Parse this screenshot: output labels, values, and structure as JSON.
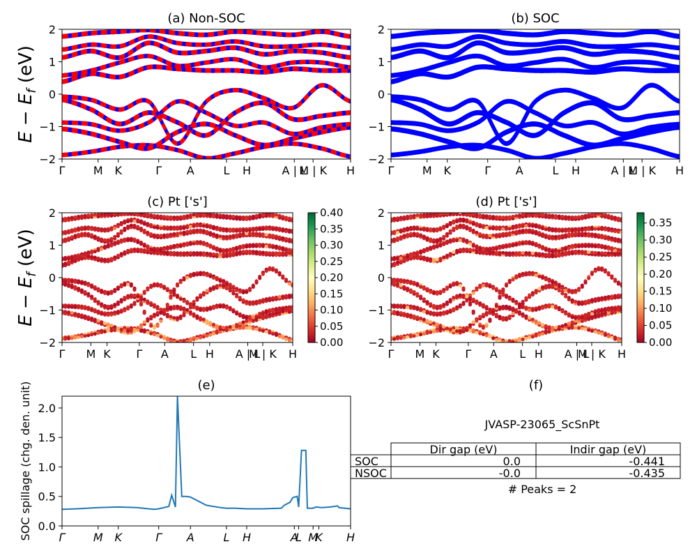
{
  "kpath_labels": [
    "Γ",
    "M",
    "K",
    "Γ",
    "A",
    "L",
    "H",
    "A | L",
    "M | K",
    "H"
  ],
  "kpath_positions": [
    0,
    0.125,
    0.195,
    0.335,
    0.445,
    0.57,
    0.64,
    0.805,
    0.87,
    1.0
  ],
  "kpath_labels_compact": [
    "Γ",
    "M",
    "K",
    "Γ",
    "A",
    "L",
    "H",
    "A | L",
    "M | K",
    "H"
  ],
  "kpath_labels_spillage": [
    "Γ",
    "M",
    "K",
    "Γ",
    "A",
    "L",
    "H",
    "A",
    "L",
    "M",
    "K",
    "H"
  ],
  "kpath_positions_spillage": [
    0,
    0.125,
    0.195,
    0.335,
    0.445,
    0.57,
    0.64,
    0.805,
    0.82,
    0.87,
    0.89,
    1.0
  ],
  "ylabel_energy": "E − E_f (eV)",
  "colors": {
    "nonsoc_up": "#ff0000",
    "nonsoc_down": "#0000ff",
    "soc": "#0000ff",
    "spillage": "#1f77b4"
  },
  "chart_data": [
    {
      "id": "a",
      "type": "line",
      "title": "(a) Non-SOC",
      "ylim": [
        -2,
        2
      ],
      "yticks": [
        "2",
        "1",
        "0",
        "−1",
        "−2"
      ],
      "legend": "none",
      "series": [
        {
          "y": [
            -1.85,
            -1.75,
            -1.6,
            -1.55,
            -1.7,
            -1.95,
            -1.8,
            -1.6,
            -1.5,
            -1.65,
            -1.9
          ]
        },
        {
          "y": [
            -1.1,
            -1.25,
            -1.5,
            -1.7,
            -1.2,
            -0.95,
            -1.3,
            -1.6,
            -1.4,
            -1.2,
            -1.05
          ]
        },
        {
          "y": [
            -0.85,
            -0.9,
            -1.1,
            -0.85,
            -0.2,
            -0.55,
            -0.95,
            -0.85,
            -1.2,
            -1.0,
            -0.9
          ]
        },
        {
          "y": [
            -0.2,
            -0.5,
            -0.95,
            -0.6,
            -0.9,
            -1.3,
            -0.6,
            -0.3,
            -0.8,
            -0.7,
            -0.6
          ]
        },
        {
          "y": [
            -0.05,
            -0.15,
            -0.45,
            -0.2,
            -1.5,
            -0.2,
            0.15,
            -0.1,
            -0.4,
            0.3,
            -0.2
          ]
        },
        {
          "y": [
            0.35,
            0.6,
            0.5,
            0.8,
            0.75,
            0.7,
            0.7,
            0.65,
            0.75,
            0.7,
            0.7
          ]
        },
        {
          "y": [
            0.6,
            0.75,
            1.0,
            1.2,
            0.9,
            1.0,
            1.1,
            0.85,
            1.0,
            1.0,
            0.85
          ]
        },
        {
          "y": [
            1.1,
            1.3,
            1.1,
            1.55,
            1.25,
            1.3,
            1.4,
            1.2,
            1.3,
            1.25,
            1.1
          ]
        },
        {
          "y": [
            1.4,
            1.55,
            1.5,
            1.8,
            1.6,
            1.55,
            1.65,
            1.5,
            1.5,
            1.55,
            1.45
          ]
        },
        {
          "y": [
            1.75,
            1.85,
            1.9,
            1.95,
            1.85,
            1.8,
            1.9,
            1.85,
            1.8,
            1.9,
            1.75
          ]
        }
      ]
    },
    {
      "id": "b",
      "type": "line",
      "title": "(b) SOC",
      "ylim": [
        -2,
        2
      ],
      "yticks": [
        "2",
        "1",
        "0",
        "−1",
        "−2"
      ],
      "legend": "none",
      "series": [
        {
          "y": [
            -1.85,
            -1.75,
            -1.6,
            -1.55,
            -1.7,
            -1.95,
            -1.8,
            -1.6,
            -1.5,
            -1.65,
            -1.9
          ]
        },
        {
          "y": [
            -1.1,
            -1.25,
            -1.5,
            -1.7,
            -1.2,
            -0.95,
            -1.3,
            -1.6,
            -1.4,
            -1.2,
            -1.05
          ]
        },
        {
          "y": [
            -0.85,
            -0.9,
            -1.1,
            -0.85,
            -0.2,
            -0.55,
            -0.95,
            -0.85,
            -1.2,
            -1.0,
            -0.9
          ]
        },
        {
          "y": [
            -0.2,
            -0.5,
            -0.95,
            -0.6,
            -0.9,
            -1.3,
            -0.6,
            -0.3,
            -0.8,
            -0.7,
            -0.6
          ]
        },
        {
          "y": [
            -0.05,
            -0.15,
            -0.45,
            -0.2,
            -1.5,
            -0.2,
            0.15,
            -0.1,
            -0.4,
            0.3,
            -0.2
          ]
        },
        {
          "y": [
            0.35,
            0.6,
            0.5,
            0.8,
            0.75,
            0.7,
            0.7,
            0.65,
            0.75,
            0.7,
            0.7
          ]
        },
        {
          "y": [
            0.6,
            0.75,
            1.0,
            1.2,
            0.9,
            1.0,
            1.1,
            0.85,
            1.0,
            1.0,
            0.85
          ]
        },
        {
          "y": [
            1.1,
            1.3,
            1.1,
            1.55,
            1.25,
            1.3,
            1.4,
            1.2,
            1.3,
            1.25,
            1.1
          ]
        },
        {
          "y": [
            1.4,
            1.55,
            1.5,
            1.8,
            1.6,
            1.55,
            1.65,
            1.5,
            1.5,
            1.55,
            1.45
          ]
        },
        {
          "y": [
            1.75,
            1.85,
            1.9,
            1.95,
            1.85,
            1.8,
            1.9,
            1.85,
            1.8,
            1.9,
            1.75
          ]
        }
      ]
    },
    {
      "id": "c",
      "type": "scatter",
      "title": "(c)  Pt ['s']",
      "ylim": [
        -2,
        2
      ],
      "yticks": [
        "2",
        "1",
        "0",
        "−1",
        "−2"
      ],
      "colorbar": {
        "min": 0.0,
        "max": 0.4,
        "ticks": [
          "0.40",
          "0.35",
          "0.30",
          "0.25",
          "0.20",
          "0.15",
          "0.10",
          "0.05",
          "0.00"
        ],
        "colormap": "RdYlGn"
      }
    },
    {
      "id": "d",
      "type": "scatter",
      "title": "(d) Pt ['s']",
      "ylim": [
        -2,
        2
      ],
      "yticks": [
        "2",
        "1",
        "0",
        "−1",
        "−2"
      ],
      "colorbar": {
        "min": 0.0,
        "max": 0.38,
        "ticks": [
          "0.35",
          "0.30",
          "0.25",
          "0.20",
          "0.15",
          "0.10",
          "0.05",
          "0.00"
        ],
        "colormap": "RdYlGn"
      }
    },
    {
      "id": "e",
      "type": "line",
      "title": "(e)",
      "ylabel": "SOC spillage (chg. den. unit)",
      "ylim": [
        0,
        2.2
      ],
      "yticks": [
        "2.0",
        "1.5",
        "1.0",
        "0.5",
        "0.0"
      ],
      "x": [
        0,
        0.05,
        0.125,
        0.195,
        0.26,
        0.3,
        0.32,
        0.335,
        0.37,
        0.38,
        0.393,
        0.4,
        0.415,
        0.43,
        0.445,
        0.5,
        0.55,
        0.57,
        0.6,
        0.64,
        0.7,
        0.76,
        0.77,
        0.79,
        0.8,
        0.815,
        0.82,
        0.83,
        0.835,
        0.845,
        0.85,
        0.87,
        0.88,
        0.9,
        0.93,
        0.955,
        0.96,
        1.0
      ],
      "y": [
        0.28,
        0.29,
        0.31,
        0.32,
        0.31,
        0.29,
        0.28,
        0.29,
        0.33,
        0.52,
        0.32,
        2.2,
        0.5,
        0.5,
        0.49,
        0.35,
        0.31,
        0.3,
        0.3,
        0.29,
        0.29,
        0.3,
        0.35,
        0.4,
        0.48,
        0.5,
        0.32,
        1.28,
        1.28,
        1.28,
        0.3,
        0.3,
        0.32,
        0.31,
        0.32,
        0.34,
        0.31,
        0.29
      ]
    }
  ],
  "panel_f": {
    "title": "(f)",
    "material": "JVASP-23065_ScSnPt",
    "table": {
      "headers": [
        "",
        "Dir gap (eV)",
        "Indir gap (eV)"
      ],
      "rows": [
        {
          "label": "SOC",
          "dir": "0.0",
          "indir": "-0.441"
        },
        {
          "label": "NSOC",
          "dir": "-0.0",
          "indir": "-0.435"
        }
      ]
    },
    "peaks": "# Peaks = 2"
  }
}
